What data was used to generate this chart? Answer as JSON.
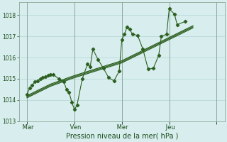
{
  "xlabel": "Pression niveau de la mer( hPa )",
  "bg_color": "#d8eeee",
  "grid_color": "#b8d8d8",
  "line_color": "#2d6020",
  "ylim": [
    1013.0,
    1018.6
  ],
  "yticks": [
    1013,
    1014,
    1015,
    1016,
    1017,
    1018
  ],
  "xlim": [
    -3,
    75
  ],
  "x_vline_positions": [
    0,
    18,
    36,
    54,
    72
  ],
  "x_tick_positions": [
    0,
    18,
    36,
    54,
    72
  ],
  "x_tick_labels": [
    " Mar",
    " Ven",
    " Mer",
    " Jeu",
    ""
  ],
  "series_volatile": [
    [
      0,
      1014.25
    ],
    [
      1,
      1014.55
    ],
    [
      2,
      1014.7
    ],
    [
      3,
      1014.85
    ],
    [
      4,
      1014.9
    ],
    [
      5,
      1015.0
    ],
    [
      6,
      1015.05
    ],
    [
      7,
      1015.1
    ],
    [
      8,
      1015.15
    ],
    [
      9,
      1015.2
    ],
    [
      10,
      1015.2
    ],
    [
      12,
      1015.0
    ],
    [
      14,
      1014.85
    ],
    [
      15,
      1014.5
    ],
    [
      16,
      1014.35
    ],
    [
      17,
      1013.9
    ],
    [
      18,
      1013.55
    ],
    [
      19,
      1013.75
    ],
    [
      21,
      1015.0
    ],
    [
      23,
      1015.7
    ],
    [
      24,
      1015.55
    ],
    [
      25,
      1016.4
    ],
    [
      27,
      1015.9
    ],
    [
      29,
      1015.5
    ],
    [
      31,
      1015.05
    ],
    [
      33,
      1014.9
    ],
    [
      35,
      1015.35
    ],
    [
      36,
      1016.85
    ],
    [
      37,
      1017.1
    ],
    [
      38,
      1017.45
    ],
    [
      39,
      1017.35
    ],
    [
      40,
      1017.1
    ],
    [
      42,
      1017.05
    ],
    [
      44,
      1016.4
    ],
    [
      46,
      1015.45
    ],
    [
      48,
      1015.5
    ],
    [
      50,
      1016.1
    ],
    [
      51,
      1017.0
    ],
    [
      53,
      1017.1
    ],
    [
      54,
      1018.3
    ],
    [
      56,
      1018.05
    ],
    [
      57,
      1017.55
    ],
    [
      60,
      1017.7
    ]
  ],
  "series_smooth1": [
    [
      0,
      1014.2
    ],
    [
      9,
      1014.75
    ],
    [
      18,
      1015.15
    ],
    [
      27,
      1015.5
    ],
    [
      36,
      1015.85
    ],
    [
      45,
      1016.4
    ],
    [
      54,
      1016.95
    ],
    [
      63,
      1017.5
    ]
  ],
  "series_smooth2": [
    [
      0,
      1014.15
    ],
    [
      9,
      1014.7
    ],
    [
      18,
      1015.1
    ],
    [
      27,
      1015.45
    ],
    [
      36,
      1015.8
    ],
    [
      45,
      1016.35
    ],
    [
      54,
      1016.9
    ],
    [
      63,
      1017.45
    ]
  ],
  "series_smooth3": [
    [
      0,
      1014.1
    ],
    [
      9,
      1014.65
    ],
    [
      18,
      1015.05
    ],
    [
      27,
      1015.4
    ],
    [
      36,
      1015.75
    ],
    [
      45,
      1016.3
    ],
    [
      54,
      1016.85
    ],
    [
      63,
      1017.4
    ]
  ]
}
